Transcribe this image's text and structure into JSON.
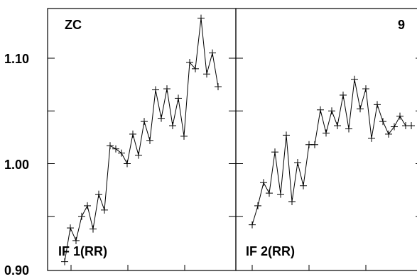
{
  "chart_data": [
    {
      "type": "line",
      "panel_label": "IF 1(RR)",
      "corner_label": "ZC",
      "ylim": [
        0.9,
        1.15
      ],
      "y_ticks": [
        "1.10",
        "1.00",
        "0.90"
      ],
      "y_tick_values": [
        1.1,
        1.0,
        0.9
      ],
      "grid": false,
      "x": [
        1,
        2,
        3,
        4,
        5,
        6,
        7,
        8,
        9,
        10,
        11,
        12,
        13,
        14,
        15,
        16,
        17,
        18,
        19,
        20,
        21,
        22,
        23,
        24,
        25,
        26,
        27,
        28
      ],
      "values": [
        0.907,
        0.939,
        0.927,
        0.95,
        0.96,
        0.938,
        0.971,
        0.956,
        1.017,
        1.014,
        1.01,
        1.0,
        1.028,
        1.008,
        1.04,
        1.022,
        1.07,
        1.043,
        1.071,
        1.036,
        1.062,
        1.026,
        1.096,
        1.09,
        1.138,
        1.085,
        1.105,
        1.073
      ]
    },
    {
      "type": "line",
      "panel_label": "IF 2(RR)",
      "corner_label": "9",
      "ylim": [
        0.9,
        1.15
      ],
      "grid": false,
      "x": [
        1,
        2,
        3,
        4,
        5,
        6,
        7,
        8,
        9,
        10,
        11,
        12,
        13,
        14,
        15,
        16,
        17,
        18,
        19,
        20,
        21,
        22,
        23,
        24,
        25,
        26,
        27,
        28,
        29
      ],
      "values": [
        0.942,
        0.96,
        0.982,
        0.972,
        1.011,
        0.971,
        1.027,
        0.964,
        1.001,
        0.979,
        1.018,
        1.018,
        1.051,
        1.029,
        1.05,
        1.036,
        1.065,
        1.033,
        1.08,
        1.052,
        1.071,
        1.024,
        1.056,
        1.04,
        1.028,
        1.035,
        1.045,
        1.036,
        1.036
      ]
    }
  ]
}
